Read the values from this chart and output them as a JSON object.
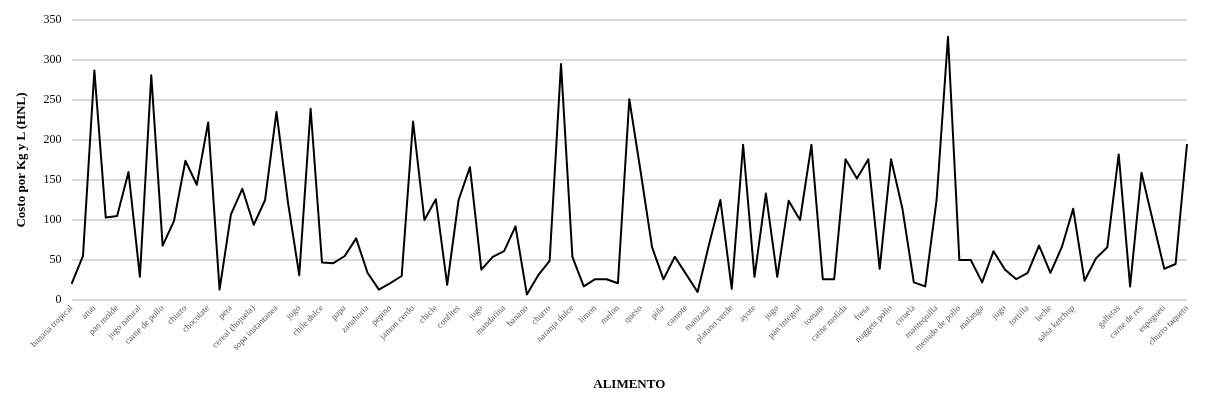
{
  "chart_data": {
    "type": "line",
    "xlabel": "ALIMENTO",
    "ylabel": "Costo por Kg y L (HNL)",
    "categories": [
      "banana tropical",
      null,
      "atun",
      null,
      "pan molde",
      null,
      "jugo natural",
      null,
      "carne de pollo",
      null,
      "churro",
      null,
      "chocolate",
      null,
      "pera",
      null,
      "cereal (hojuela)",
      null,
      "sopa instantanea",
      null,
      "jugo",
      null,
      "chile dulce",
      null,
      "papa",
      null,
      "zanahoria",
      null,
      "pepino",
      null,
      "jamon cerdo",
      null,
      "chicle",
      null,
      "confites",
      null,
      "jugo",
      null,
      "mandarina",
      null,
      "banano",
      null,
      "churro",
      null,
      "naranja dulce",
      null,
      "limon",
      null,
      "melon",
      null,
      "queso",
      null,
      "piña",
      null,
      "camote",
      null,
      "manzana",
      null,
      "platano verde",
      null,
      "ayote",
      null,
      "jugo",
      null,
      "pan integral",
      null,
      "tomate",
      null,
      "carne molida",
      null,
      "fresa",
      null,
      "nuggets pollo",
      null,
      "ciruela",
      null,
      "mantequilla",
      null,
      "menudo de pollo",
      null,
      "malanga",
      null,
      "jugo",
      null,
      "tortilla",
      null,
      "leche",
      null,
      "salsa ketchup",
      null,
      null,
      null,
      "galletas",
      null,
      "carne de res",
      null,
      "espagueti",
      null,
      "churro taqueto"
    ],
    "series": [
      {
        "color": "#000000",
        "values": [
          20,
          55,
          287,
          103,
          105,
          160,
          29,
          281,
          68,
          99,
          174,
          144,
          222,
          13,
          107,
          139,
          94,
          125,
          235,
          123,
          31,
          239,
          47,
          46,
          55,
          77,
          34,
          13,
          21,
          30,
          223,
          100,
          126,
          19,
          125,
          166,
          38,
          54,
          61,
          92,
          7,
          31,
          49,
          295,
          54,
          17,
          26,
          26,
          21,
          251,
          160,
          66,
          26,
          54,
          32,
          10,
          69,
          125,
          14,
          194,
          29,
          133,
          29,
          124,
          100,
          194,
          26,
          26,
          176,
          152,
          176,
          39,
          176,
          114,
          22,
          17,
          125,
          329,
          50,
          50,
          22,
          61,
          38,
          26,
          34,
          68,
          34,
          66,
          114,
          24,
          52,
          66,
          182,
          17,
          159,
          99,
          39,
          45,
          195
        ]
      }
    ],
    "ylim": [
      0,
      350
    ],
    "yticks": [
      0,
      50,
      100,
      150,
      200,
      250,
      300,
      350
    ],
    "grid": "y",
    "legend": false,
    "marker": "none",
    "line_style": "solid"
  }
}
